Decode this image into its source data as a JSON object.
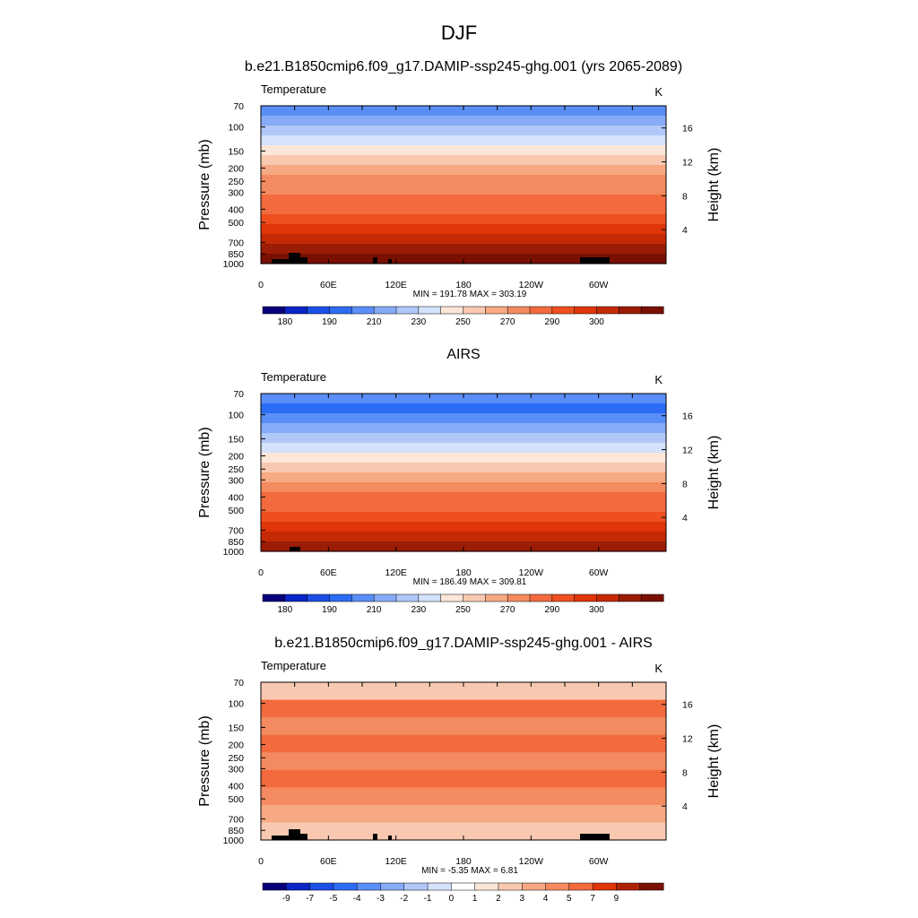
{
  "figure": {
    "main_title": "DJF"
  },
  "chart_data": [
    {
      "type": "heatmap",
      "title": "b.e21.B1850cmip6.f09_g17.DAMIP-ssp245-ghg.001 (yrs 2065-2089)",
      "left_label": "Temperature",
      "right_label": "K",
      "ylabel": "Pressure (mb)",
      "ylabel_right": "Height (km)",
      "xticks": [
        "0",
        "60E",
        "120E",
        "180",
        "120W",
        "60W"
      ],
      "yticks": [
        "70",
        "100",
        "150",
        "200",
        "250",
        "300",
        "400",
        "500",
        "700",
        "850",
        "1000"
      ],
      "yticks_right": [
        "16",
        "12",
        "8",
        "4"
      ],
      "stats": "MIN = 191.78  MAX = 303.19",
      "colorbar_labels": [
        "180",
        "190",
        "210",
        "230",
        "250",
        "270",
        "290",
        "300"
      ],
      "levels_top_to_bottom": [
        200,
        205,
        210,
        220,
        230,
        240,
        250,
        260,
        265,
        270,
        275,
        280,
        285,
        290,
        295,
        300
      ]
    },
    {
      "type": "heatmap",
      "title": "AIRS",
      "left_label": "Temperature",
      "right_label": "K",
      "ylabel": "Pressure (mb)",
      "ylabel_right": "Height (km)",
      "xticks": [
        "0",
        "60E",
        "120E",
        "180",
        "120W",
        "60W"
      ],
      "yticks": [
        "70",
        "100",
        "150",
        "200",
        "250",
        "300",
        "400",
        "500",
        "700",
        "850",
        "1000"
      ],
      "yticks_right": [
        "16",
        "12",
        "8",
        "4"
      ],
      "stats": "MIN = 186.49  MAX = 309.81",
      "colorbar_labels": [
        "180",
        "190",
        "210",
        "230",
        "250",
        "270",
        "290",
        "300"
      ],
      "levels_top_to_bottom": [
        200,
        195,
        200,
        205,
        210,
        220,
        230,
        240,
        250,
        260,
        270,
        275,
        280,
        285,
        290,
        295
      ]
    },
    {
      "type": "heatmap",
      "title": "b.e21.B1850cmip6.f09_g17.DAMIP-ssp245-ghg.001 - AIRS",
      "left_label": "Temperature",
      "right_label": "K",
      "ylabel": "Pressure (mb)",
      "ylabel_right": "Height (km)",
      "xticks": [
        "0",
        "60E",
        "120E",
        "180",
        "120W",
        "60W"
      ],
      "yticks": [
        "70",
        "100",
        "150",
        "200",
        "250",
        "300",
        "400",
        "500",
        "700",
        "850",
        "1000"
      ],
      "yticks_right": [
        "16",
        "12",
        "8",
        "4"
      ],
      "stats": "MIN =  -5.35  MAX =   6.81",
      "colorbar_labels": [
        "-9",
        "-7",
        "-5",
        "-4",
        "-3",
        "-2",
        "-1",
        "0",
        "1",
        "2",
        "3",
        "4",
        "5",
        "7",
        "9"
      ],
      "levels_top_to_bottom": [
        2,
        5,
        4,
        5,
        4,
        5,
        4,
        3,
        2
      ]
    }
  ],
  "colors": {
    "temperature_scale": [
      "#08007a",
      "#0a25c8",
      "#1c4fe6",
      "#2d6cf5",
      "#5a8ef7",
      "#86abf7",
      "#afc8f8",
      "#d4e2fb",
      "#fbe6d8",
      "#f8c9b0",
      "#f6a983",
      "#f48a5f",
      "#f26a3d",
      "#ef4f1f",
      "#e03508",
      "#c42a05",
      "#9a1c04",
      "#7a1002"
    ],
    "difference_scale": [
      "#08007a",
      "#0a25c8",
      "#1c4fe6",
      "#2d6cf5",
      "#5a8ef7",
      "#86abf7",
      "#afc8f8",
      "#d4e2fb",
      "#ffffff",
      "#fbe6d8",
      "#f8c9b0",
      "#f6a983",
      "#f48a5f",
      "#f26a3d",
      "#e03508",
      "#b02204",
      "#7a1002"
    ]
  }
}
